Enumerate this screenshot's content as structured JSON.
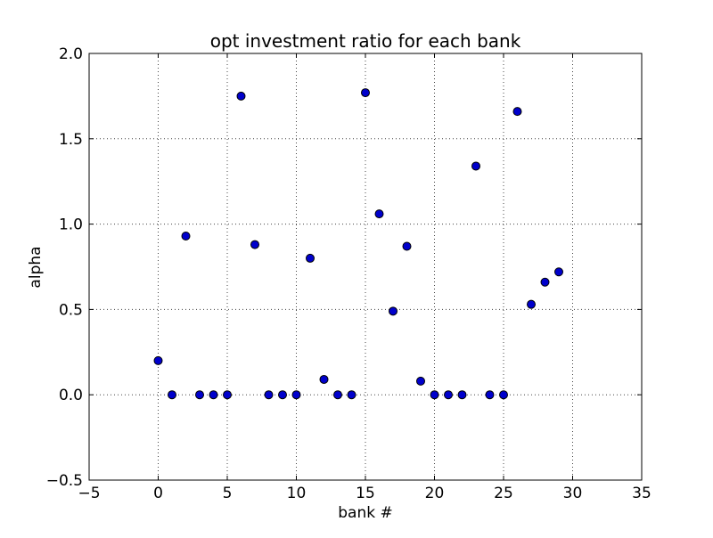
{
  "chart_data": {
    "type": "scatter",
    "title": "opt investment ratio for each bank",
    "xlabel": "bank #",
    "ylabel": "alpha",
    "xlim": [
      -5,
      35
    ],
    "ylim": [
      -0.5,
      2.0
    ],
    "grid": true,
    "legend": null,
    "marker_color": "#0000cc",
    "marker_edge_color": "#000000",
    "axis_color": "#000000",
    "background_color": "#ffffff",
    "xticks": {
      "values": [
        -5,
        0,
        5,
        10,
        15,
        20,
        25,
        30,
        35
      ],
      "labels": [
        "−5",
        "0",
        "5",
        "10",
        "15",
        "20",
        "25",
        "30",
        "35"
      ]
    },
    "yticks": {
      "values": [
        -0.5,
        0.0,
        0.5,
        1.0,
        1.5,
        2.0
      ],
      "labels": [
        "−0.5",
        "0.0",
        "0.5",
        "1.0",
        "1.5",
        "2.0"
      ]
    },
    "x": [
      0,
      1,
      2,
      3,
      4,
      5,
      6,
      7,
      8,
      9,
      10,
      11,
      12,
      13,
      14,
      15,
      16,
      17,
      18,
      19,
      20,
      21,
      22,
      23,
      24,
      25,
      26,
      27,
      28,
      29
    ],
    "y": [
      0.2,
      0.0,
      0.93,
      0.0,
      0.0,
      0.0,
      1.75,
      0.88,
      0.0,
      0.0,
      0.0,
      0.8,
      0.09,
      0.0,
      0.0,
      1.77,
      1.06,
      0.49,
      0.87,
      0.08,
      0.0,
      0.0,
      0.0,
      1.34,
      0.0,
      0.0,
      1.66,
      0.53,
      0.66,
      0.72
    ]
  }
}
